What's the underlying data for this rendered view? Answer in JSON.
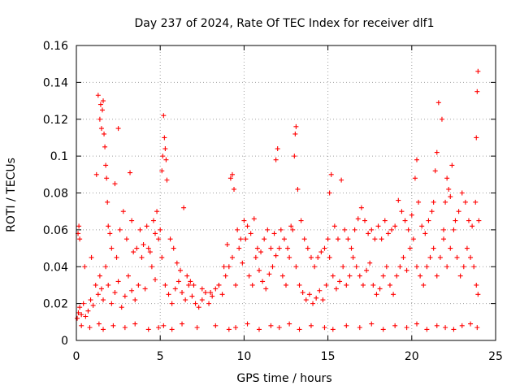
{
  "chart_data": {
    "type": "scatter",
    "title": "Day 237 of 2024, Rate Of TEC Index for receiver dlf1",
    "xlabel": "GPS time / hours",
    "ylabel": "ROTI / TECUs",
    "xlim": [
      0,
      25
    ],
    "ylim": [
      0,
      0.16
    ],
    "xticks": [
      0,
      5,
      10,
      15,
      20,
      25
    ],
    "xtick_labels": [
      "0",
      "5",
      "10",
      "15",
      "20",
      "25"
    ],
    "yticks": [
      0,
      0.02,
      0.04,
      0.06,
      0.08,
      0.1,
      0.12,
      0.14,
      0.16
    ],
    "ytick_labels": [
      "0",
      "0.02",
      "0.04",
      "0.06",
      "0.08",
      "0.1",
      "0.12",
      "0.14",
      "0.16"
    ],
    "grid": true,
    "marker": "plus",
    "color": "#ff0000",
    "series": [
      {
        "name": "ROTI",
        "x": [
          0.05,
          0.12,
          0.2,
          0.3,
          0.42,
          0.55,
          0.7,
          0.85,
          1.0,
          1.15,
          1.3,
          1.4,
          1.5,
          1.6,
          1.75,
          1.9,
          2.1,
          2.3,
          2.5,
          2.7,
          2.9,
          3.1,
          3.3,
          3.5,
          3.7,
          3.9,
          4.1,
          4.3,
          4.5,
          4.7,
          4.9,
          5.1,
          5.3,
          5.5,
          5.7,
          5.9,
          6.1,
          6.3,
          6.5,
          6.7,
          6.9,
          7.1,
          7.3,
          7.5,
          7.7,
          7.9,
          8.1,
          8.3,
          8.5,
          8.7,
          8.9,
          9.1,
          9.3,
          9.5,
          9.7,
          9.9,
          10.1,
          10.3,
          10.5,
          10.7,
          10.9,
          11.1,
          11.3,
          11.5,
          11.7,
          11.9,
          12.1,
          12.3,
          12.5,
          12.7,
          12.9,
          13.1,
          13.3,
          13.5,
          13.7,
          13.9,
          14.1,
          14.3,
          14.5,
          14.7,
          14.9,
          15.1,
          15.3,
          15.5,
          15.7,
          15.9,
          16.1,
          16.3,
          16.5,
          16.7,
          16.9,
          17.1,
          17.3,
          17.5,
          17.7,
          17.9,
          18.1,
          18.3,
          18.5,
          18.7,
          18.9,
          19.1,
          19.3,
          19.5,
          19.7,
          19.9,
          20.1,
          20.3,
          20.5,
          20.7,
          20.9,
          21.1,
          21.3,
          21.5,
          21.7,
          21.9,
          22.1,
          22.3,
          22.5,
          22.7,
          22.9,
          23.1,
          23.3,
          23.5,
          23.7,
          23.85,
          23.95,
          0.1,
          0.15,
          0.2,
          0.5,
          0.9,
          1.2,
          1.3,
          1.4,
          1.45,
          1.5,
          1.55,
          1.6,
          1.65,
          1.7,
          1.75,
          1.8,
          1.85,
          1.9,
          2.0,
          2.1,
          2.3,
          2.4,
          2.5,
          2.6,
          2.8,
          3.0,
          3.2,
          3.3,
          3.4,
          3.6,
          3.8,
          4.0,
          4.2,
          4.4,
          4.6,
          4.7,
          4.8,
          5.0,
          5.1,
          5.15,
          5.2,
          5.25,
          5.3,
          5.35,
          5.4,
          5.6,
          5.8,
          6.0,
          6.2,
          6.4,
          6.6,
          6.8,
          7.0,
          7.5,
          8.0,
          8.5,
          8.8,
          9.0,
          9.2,
          9.3,
          9.4,
          9.6,
          9.8,
          10.0,
          10.2,
          10.4,
          10.6,
          10.8,
          11.0,
          11.2,
          11.4,
          11.6,
          11.8,
          11.9,
          12.0,
          12.2,
          12.4,
          12.6,
          12.8,
          13.0,
          13.05,
          13.1,
          13.2,
          13.4,
          13.6,
          13.8,
          14.0,
          14.2,
          14.4,
          14.6,
          14.8,
          15.0,
          15.1,
          15.2,
          15.4,
          15.6,
          15.8,
          16.0,
          16.2,
          16.4,
          16.6,
          16.8,
          17.0,
          17.2,
          17.4,
          17.6,
          17.8,
          18.0,
          18.2,
          18.4,
          18.6,
          18.8,
          19.0,
          19.2,
          19.4,
          19.6,
          19.8,
          20.0,
          20.2,
          20.3,
          20.4,
          20.6,
          20.8,
          21.0,
          21.2,
          21.3,
          21.4,
          21.5,
          21.6,
          21.8,
          21.9,
          22.0,
          22.1,
          22.2,
          22.3,
          22.4,
          22.6,
          22.8,
          23.0,
          23.2,
          23.4,
          23.6,
          23.8,
          23.85,
          23.9,
          23.95,
          24.0,
          0.3,
          0.8,
          1.35,
          1.6,
          2.2,
          2.9,
          3.5,
          4.3,
          4.9,
          5.2,
          5.7,
          6.3,
          7.2,
          8.3,
          9.1,
          9.5,
          10.2,
          10.9,
          11.6,
          12.1,
          12.7,
          13.3,
          14.0,
          14.8,
          15.3,
          16.1,
          16.9,
          17.6,
          18.3,
          19.0,
          19.7,
          20.3,
          20.9,
          21.5,
          22.0,
          22.5,
          23.0,
          23.5,
          23.9
        ],
        "y": [
          0.012,
          0.015,
          0.018,
          0.014,
          0.02,
          0.013,
          0.016,
          0.022,
          0.019,
          0.03,
          0.025,
          0.035,
          0.028,
          0.022,
          0.04,
          0.03,
          0.02,
          0.026,
          0.032,
          0.018,
          0.024,
          0.035,
          0.027,
          0.022,
          0.03,
          0.045,
          0.028,
          0.05,
          0.04,
          0.033,
          0.055,
          0.045,
          0.03,
          0.025,
          0.02,
          0.028,
          0.032,
          0.026,
          0.022,
          0.03,
          0.024,
          0.02,
          0.018,
          0.022,
          0.026,
          0.02,
          0.024,
          0.028,
          0.03,
          0.025,
          0.035,
          0.04,
          0.045,
          0.03,
          0.05,
          0.042,
          0.055,
          0.035,
          0.03,
          0.045,
          0.038,
          0.032,
          0.028,
          0.036,
          0.04,
          0.046,
          0.05,
          0.035,
          0.03,
          0.045,
          0.06,
          0.04,
          0.03,
          0.026,
          0.022,
          0.025,
          0.02,
          0.023,
          0.027,
          0.022,
          0.03,
          0.045,
          0.035,
          0.028,
          0.032,
          0.04,
          0.03,
          0.035,
          0.045,
          0.04,
          0.035,
          0.03,
          0.038,
          0.042,
          0.03,
          0.025,
          0.028,
          0.035,
          0.04,
          0.03,
          0.025,
          0.035,
          0.04,
          0.045,
          0.038,
          0.05,
          0.055,
          0.04,
          0.035,
          0.03,
          0.04,
          0.045,
          0.05,
          0.035,
          0.045,
          0.055,
          0.04,
          0.05,
          0.06,
          0.045,
          0.035,
          0.04,
          0.05,
          0.045,
          0.04,
          0.03,
          0.025,
          0.058,
          0.062,
          0.055,
          0.04,
          0.045,
          0.09,
          0.133,
          0.12,
          0.128,
          0.115,
          0.125,
          0.13,
          0.112,
          0.105,
          0.095,
          0.088,
          0.075,
          0.062,
          0.058,
          0.05,
          0.085,
          0.045,
          0.115,
          0.06,
          0.07,
          0.055,
          0.091,
          0.065,
          0.048,
          0.05,
          0.06,
          0.052,
          0.062,
          0.048,
          0.065,
          0.058,
          0.07,
          0.06,
          0.092,
          0.1,
          0.122,
          0.11,
          0.104,
          0.098,
          0.087,
          0.055,
          0.05,
          0.042,
          0.038,
          0.072,
          0.035,
          0.032,
          0.03,
          0.028,
          0.026,
          0.03,
          0.04,
          0.052,
          0.088,
          0.09,
          0.082,
          0.06,
          0.055,
          0.065,
          0.062,
          0.058,
          0.066,
          0.05,
          0.048,
          0.055,
          0.06,
          0.05,
          0.058,
          0.098,
          0.104,
          0.06,
          0.055,
          0.05,
          0.062,
          0.1,
          0.112,
          0.116,
          0.082,
          0.065,
          0.055,
          0.05,
          0.045,
          0.04,
          0.045,
          0.048,
          0.05,
          0.055,
          0.08,
          0.09,
          0.062,
          0.055,
          0.087,
          0.06,
          0.055,
          0.05,
          0.06,
          0.066,
          0.072,
          0.065,
          0.058,
          0.06,
          0.055,
          0.062,
          0.055,
          0.065,
          0.058,
          0.06,
          0.062,
          0.076,
          0.07,
          0.065,
          0.06,
          0.068,
          0.088,
          0.098,
          0.075,
          0.062,
          0.058,
          0.065,
          0.07,
          0.075,
          0.092,
          0.102,
          0.129,
          0.12,
          0.06,
          0.075,
          0.088,
          0.082,
          0.078,
          0.095,
          0.065,
          0.07,
          0.08,
          0.075,
          0.065,
          0.062,
          0.075,
          0.11,
          0.135,
          0.146,
          0.065,
          0.008,
          0.007,
          0.009,
          0.006,
          0.008,
          0.007,
          0.009,
          0.006,
          0.007,
          0.008,
          0.006,
          0.009,
          0.007,
          0.008,
          0.006,
          0.007,
          0.009,
          0.006,
          0.008,
          0.007,
          0.009,
          0.006,
          0.008,
          0.007,
          0.006,
          0.008,
          0.007,
          0.009,
          0.006,
          0.008,
          0.007,
          0.009,
          0.006,
          0.008,
          0.007,
          0.006,
          0.008,
          0.009,
          0.007
        ]
      }
    ]
  }
}
